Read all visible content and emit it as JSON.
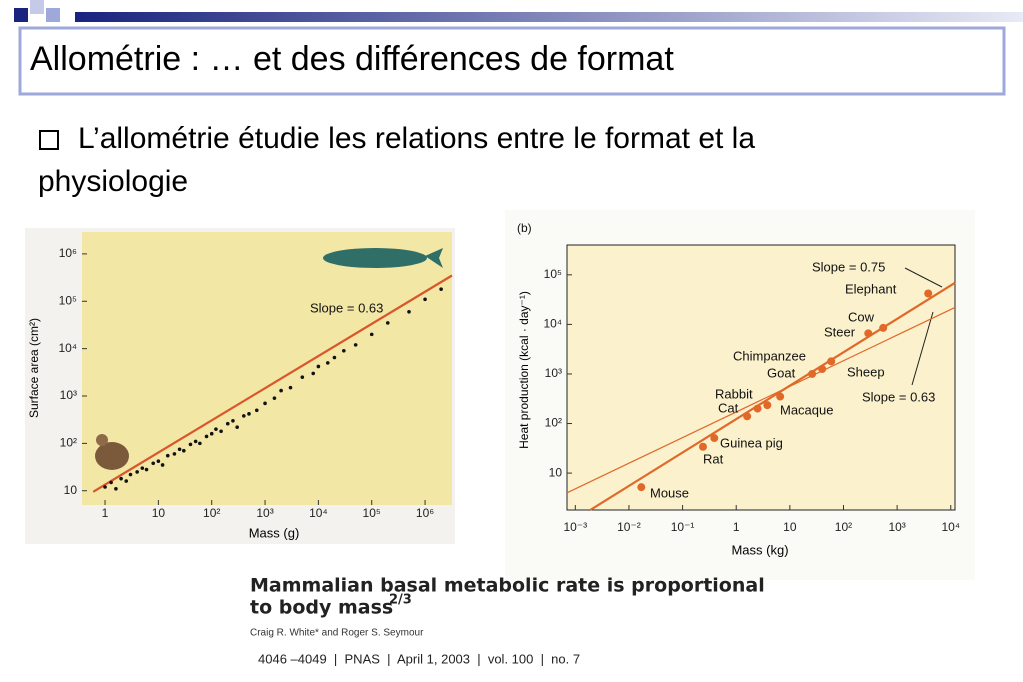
{
  "header": {
    "title": "Allométrie : … et des différences de format"
  },
  "bullet": {
    "lines": [
      "L’allométrie étudie les relations entre le format et la",
      "physiologie"
    ]
  },
  "chart_data": [
    {
      "type": "scatter",
      "log_x": true,
      "log_y": true,
      "x_label": "Mass (g)",
      "y_label": "Surface area (cm²)",
      "xlim": [
        0.37,
        3200000
      ],
      "ylim": [
        5,
        2900000
      ],
      "xticks": [
        1,
        10,
        {
          "value": 100,
          "label": "10²"
        },
        {
          "value": 1000,
          "label": "10³"
        },
        {
          "value": 10000,
          "label": "10⁴"
        },
        {
          "value": 100000,
          "label": "10⁵"
        },
        {
          "value": 1000000,
          "label": "10⁶"
        }
      ],
      "yticks": [
        10,
        {
          "value": 100,
          "label": "10²"
        },
        {
          "value": 1000,
          "label": "10³"
        },
        {
          "value": 10000,
          "label": "10⁴"
        },
        {
          "value": 100000,
          "label": "10⁵"
        },
        {
          "value": 1000000,
          "label": "10⁶"
        }
      ],
      "color": "#111111",
      "x": [
        1,
        1.3,
        1.6,
        2,
        2.5,
        3,
        4,
        5,
        6,
        8,
        10,
        12,
        15,
        20,
        25,
        30,
        40,
        50,
        60,
        80,
        100,
        120,
        150,
        200,
        250,
        300,
        400,
        500,
        700,
        1000,
        1500,
        2000,
        3000,
        5000,
        8000,
        10000,
        15000,
        20000,
        30000,
        50000,
        100000,
        200000,
        500000,
        1000000,
        2000000
      ],
      "values": [
        12,
        15,
        11,
        18,
        16,
        22,
        25,
        30,
        28,
        38,
        42,
        35,
        55,
        60,
        75,
        70,
        95,
        110,
        100,
        140,
        160,
        200,
        180,
        260,
        300,
        220,
        380,
        420,
        500,
        700,
        900,
        1300,
        1500,
        2500,
        3000,
        4200,
        5000,
        6500,
        9000,
        12000,
        20000,
        35000,
        60000,
        110000,
        180000
      ],
      "lines": [
        {
          "color": "#d9562a",
          "x": [
            0.6,
            3200000
          ],
          "values": [
            9.5,
            350000
          ]
        }
      ],
      "annotations": [
        "Slope = 0.63"
      ]
    },
    {
      "type": "scatter",
      "log_x": true,
      "log_y": true,
      "x_label": "Mass (kg)",
      "y_label": "Heat production (kcal · day⁻¹)",
      "xlim": [
        0.0007,
        12000
      ],
      "ylim": [
        1.8,
        400000
      ],
      "xticks": [
        {
          "value": 0.001,
          "label": "10⁻³"
        },
        {
          "value": 0.01,
          "label": "10⁻²"
        },
        {
          "value": 0.1,
          "label": "10⁻¹"
        },
        1,
        10,
        {
          "value": 100,
          "label": "10²"
        },
        {
          "value": 1000,
          "label": "10³"
        },
        {
          "value": 10000,
          "label": "10⁴"
        }
      ],
      "yticks": [
        10,
        {
          "value": 100,
          "label": "10²"
        },
        {
          "value": 1000,
          "label": "10³"
        },
        {
          "value": 10000,
          "label": "10⁴"
        },
        {
          "value": 100000,
          "label": "10⁵"
        }
      ],
      "color": "#e0692a",
      "point_labels": [
        "Mouse",
        "Rat",
        "Guinea pig",
        "Cat",
        "Rabbit",
        null,
        "Macaque",
        "Goat",
        "Sheep",
        "Chimpanzee",
        "Steer",
        "Cow",
        "Elephant"
      ],
      "x": [
        0.017,
        0.24,
        0.39,
        1.6,
        2.5,
        3.8,
        6.6,
        26,
        40,
        59,
        290,
        550,
        3800
      ],
      "values": [
        5.2,
        34,
        51,
        140,
        200,
        235,
        350,
        1000,
        1260,
        1800,
        6600,
        8500,
        42000
      ],
      "lines": [
        {
          "color": "#e0692a",
          "x": [
            0.0019,
            12000
          ],
          "values": [
            1.8,
            69000
          ]
        },
        {
          "color": "#e0692a",
          "x": [
            0.0007,
            12000
          ],
          "values": [
            4,
            22000
          ]
        }
      ],
      "annotations": [
        "(b)",
        "Slope = 0.75",
        "Slope = 0.63"
      ]
    }
  ],
  "citation": {
    "title_lines": [
      "Mammalian basal metabolic rate is proportional",
      "to body mass"
    ],
    "exponent": "2/3",
    "authors": "Craig R. White* and Roger S. Seymour",
    "footer": "4046 –4049  |  PNAS  |  April 1, 2003  |  vol. 100  |  no. 7"
  }
}
